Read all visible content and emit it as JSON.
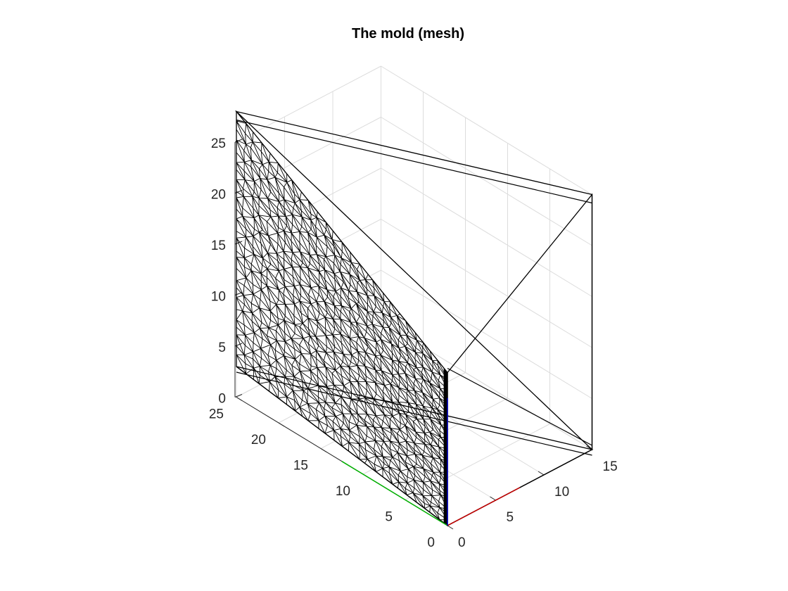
{
  "chart_data": {
    "type": "surface-mesh-3d",
    "title": "The mold (mesh)",
    "xlabel": "",
    "ylabel": "",
    "zlabel": "",
    "xlim": [
      0,
      15
    ],
    "ylim": [
      0,
      25
    ],
    "zlim": [
      0,
      25
    ],
    "x_ticks": [
      "0",
      "5",
      "10",
      "15"
    ],
    "y_ticks": [
      "0",
      "5",
      "10",
      "15",
      "20",
      "25"
    ],
    "z_ticks": [
      "0",
      "5",
      "10",
      "15",
      "20",
      "25"
    ],
    "grid": true,
    "axis_line_colors": {
      "x": "#cc0000",
      "y": "#00b000",
      "z": "#0000cc"
    },
    "mesh_color": "#000000",
    "grid_color": "#dcdcdc",
    "vertices": [
      {
        "name": "A",
        "x": 0,
        "y": 0,
        "z": 0
      },
      {
        "name": "B",
        "x": 15,
        "y": 0,
        "z": 0
      },
      {
        "name": "C",
        "x": 15,
        "y": 0,
        "z": 25
      },
      {
        "name": "D",
        "x": 0,
        "y": 0,
        "z": 15
      },
      {
        "name": "E",
        "x": 0,
        "y": 25,
        "z": 3
      },
      {
        "name": "F",
        "x": 0,
        "y": 25,
        "z": 28
      }
    ],
    "faces": [
      {
        "name": "mesh-face",
        "vertices": [
          "A",
          "D",
          "F",
          "E"
        ],
        "dense": true
      },
      {
        "name": "back-face",
        "vertices": [
          "B",
          "C",
          "F"
        ],
        "dense": false
      },
      {
        "name": "bottom-face",
        "vertices": [
          "A",
          "B",
          "E"
        ],
        "dense": false
      },
      {
        "name": "front-face",
        "vertices": [
          "A",
          "B",
          "C",
          "D"
        ],
        "dense": false
      }
    ]
  }
}
